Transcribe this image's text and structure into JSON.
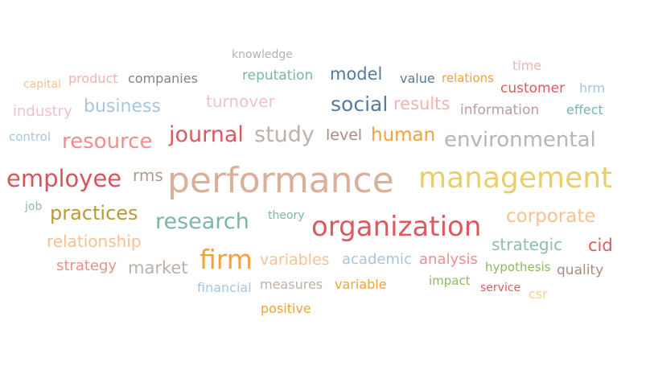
{
  "words": [
    {
      "text": "performance",
      "color": "#d9b09a"
    },
    {
      "text": "management",
      "color": "#e9cf6c"
    },
    {
      "text": "organization",
      "color": "#dc5a5f"
    },
    {
      "text": "employee",
      "color": "#d9545a"
    },
    {
      "text": "firm",
      "color": "#f0a23d"
    },
    {
      "text": "research",
      "color": "#7db5ab"
    },
    {
      "text": "journal",
      "color": "#dc5a5f"
    },
    {
      "text": "study",
      "color": "#bfb1a8"
    },
    {
      "text": "environmental",
      "color": "#bcb4ae"
    },
    {
      "text": "resource",
      "color": "#ee8f8b"
    },
    {
      "text": "practices",
      "color": "#b89a39"
    },
    {
      "text": "corporate",
      "color": "#f6c193"
    },
    {
      "text": "social",
      "color": "#557a9c"
    },
    {
      "text": "human",
      "color": "#f0a23d"
    },
    {
      "text": "business",
      "color": "#a6c6e0"
    },
    {
      "text": "results",
      "color": "#f4b1b3"
    },
    {
      "text": "strategic",
      "color": "#8fbcb4"
    },
    {
      "text": "model",
      "color": "#557a9c"
    },
    {
      "text": "cid",
      "color": "#dc5a5f"
    },
    {
      "text": "relationship",
      "color": "#f6c193"
    },
    {
      "text": "turnover",
      "color": "#f4bfd0"
    },
    {
      "text": "market",
      "color": "#bbb0a8"
    },
    {
      "text": "variables",
      "color": "#f6c193"
    },
    {
      "text": "analysis",
      "color": "#ee8f8b"
    },
    {
      "text": "academic",
      "color": "#a6c6e0"
    },
    {
      "text": "strategy",
      "color": "#ee8f8b"
    },
    {
      "text": "industry",
      "color": "#f4bfd0"
    },
    {
      "text": "rms",
      "color": "#b29a8c"
    },
    {
      "text": "level",
      "color": "#a68e80"
    },
    {
      "text": "reputation",
      "color": "#7db5ab"
    },
    {
      "text": "information",
      "color": "#b99aaa"
    },
    {
      "text": "customer",
      "color": "#dc5a5f"
    },
    {
      "text": "quality",
      "color": "#a68e80"
    },
    {
      "text": "companies",
      "color": "#8a817c"
    },
    {
      "text": "product",
      "color": "#f4b1b3"
    },
    {
      "text": "value",
      "color": "#557a9c"
    },
    {
      "text": "effect",
      "color": "#7db5ab"
    },
    {
      "text": "financial",
      "color": "#a6c6e0"
    },
    {
      "text": "measures",
      "color": "#bfb1a8"
    },
    {
      "text": "variable",
      "color": "#f0a23d"
    },
    {
      "text": "positive",
      "color": "#f0a23d"
    },
    {
      "text": "hypothesis",
      "color": "#8db95c"
    },
    {
      "text": "impact",
      "color": "#8db95c"
    },
    {
      "text": "relations",
      "color": "#f0a23d"
    },
    {
      "text": "time",
      "color": "#f4b1b3"
    },
    {
      "text": "hrm",
      "color": "#a6c6e0"
    },
    {
      "text": "capital",
      "color": "#f6c193"
    },
    {
      "text": "control",
      "color": "#a6c6e0"
    },
    {
      "text": "knowledge",
      "color": "#bbb0a8"
    },
    {
      "text": "theory",
      "color": "#7db5ab"
    },
    {
      "text": "job",
      "color": "#8fbcb4"
    },
    {
      "text": "service",
      "color": "#dc5a5f"
    },
    {
      "text": "csr",
      "color": "#f6d28c"
    }
  ]
}
